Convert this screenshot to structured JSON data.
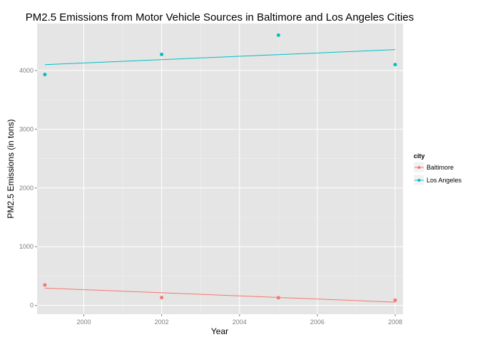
{
  "chart_data": {
    "type": "line",
    "title": "PM2.5 Emissions from Motor Vehicle Sources in Baltimore and Los Angeles Cities",
    "xlabel": "Year",
    "ylabel": "PM2.5 Emissions (in tons)",
    "xlim": [
      1998.8,
      2008.2
    ],
    "ylim": [
      -150,
      4800
    ],
    "x_ticks": [
      2000,
      2002,
      2004,
      2006,
      2008
    ],
    "x_tick_labels": [
      "2000",
      "2002",
      "2004",
      "2006",
      "2008"
    ],
    "y_ticks": [
      0,
      1000,
      2000,
      3000,
      4000
    ],
    "y_tick_labels": [
      "0",
      "1000",
      "2000",
      "3000",
      "4000"
    ],
    "grid": true,
    "legend": {
      "title": "city",
      "position": "right"
    },
    "series": [
      {
        "name": "Baltimore",
        "color": "#F8766D",
        "points": [
          {
            "x": 1999,
            "y": 347
          },
          {
            "x": 2002,
            "y": 134
          },
          {
            "x": 2005,
            "y": 130
          },
          {
            "x": 2008,
            "y": 88
          }
        ],
        "trend": [
          [
            1999,
            295
          ],
          [
            2008,
            55
          ]
        ]
      },
      {
        "name": "Los Angeles",
        "color": "#00BFC4",
        "points": [
          {
            "x": 1999,
            "y": 3931
          },
          {
            "x": 2002,
            "y": 4274
          },
          {
            "x": 2005,
            "y": 4601
          },
          {
            "x": 2008,
            "y": 4101
          }
        ],
        "trend": [
          [
            1999,
            4100
          ],
          [
            2008,
            4355
          ]
        ]
      }
    ]
  }
}
